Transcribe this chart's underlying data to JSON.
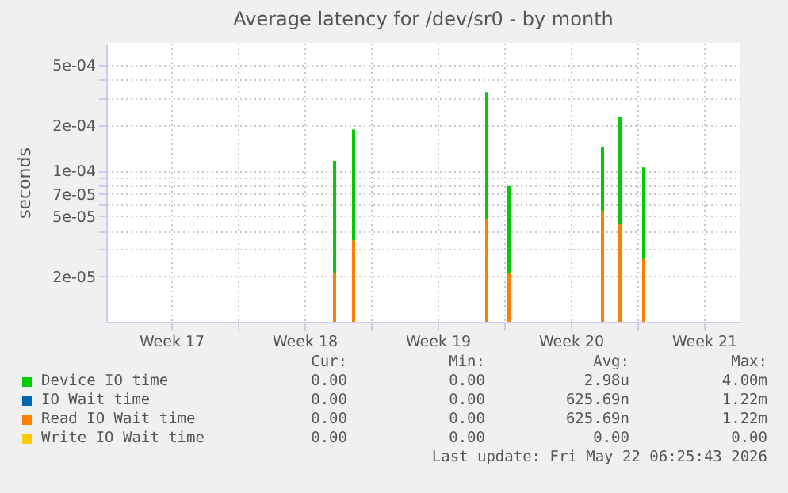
{
  "chart_data": {
    "type": "bar",
    "title": "Average latency for /dev/sr0 - by month",
    "ylabel": "seconds",
    "x": [
      "2026-05-02T02:00",
      "2026-05-03T02:00",
      "2026-05-10T02:00",
      "2026-05-11T06:00",
      "2026-05-16T04:00",
      "2026-05-17T02:00",
      "2026-05-18T08:00"
    ],
    "series": [
      {
        "name": "Device IO time",
        "color": "#00cc00",
        "values": [
          0.000116,
          0.000187,
          0.00033,
          7.9e-05,
          0.000143,
          0.000225,
          0.000105
        ]
      },
      {
        "name": "IO Wait time",
        "color": "#0066b3",
        "values": [
          null,
          null,
          null,
          null,
          null,
          null,
          null
        ]
      },
      {
        "name": "Read IO Wait time",
        "color": "#ff8000",
        "values": [
          2.1e-05,
          3.45e-05,
          4.8e-05,
          2.1e-05,
          5.4e-05,
          4.4e-05,
          2.6e-05
        ]
      },
      {
        "name": "Write IO Wait time",
        "color": "#ffcc00",
        "values": [
          null,
          null,
          null,
          null,
          null,
          null,
          null
        ]
      }
    ],
    "log": "y",
    "ylim": [
      1e-05,
      0.0007
    ],
    "yticks": [
      {
        "value": 2e-05,
        "label": "2e-05"
      },
      {
        "value": 3e-05,
        "label": null
      },
      {
        "value": 4e-05,
        "label": null
      },
      {
        "value": 5e-05,
        "label": "5e-05"
      },
      {
        "value": 6e-05,
        "label": null
      },
      {
        "value": 7e-05,
        "label": "7e-05"
      },
      {
        "value": 8e-05,
        "label": null
      },
      {
        "value": 9e-05,
        "label": null
      },
      {
        "value": 0.0001,
        "label": "1e-04"
      },
      {
        "value": 0.0002,
        "label": "2e-04"
      },
      {
        "value": 0.0003,
        "label": null
      },
      {
        "value": 0.0004,
        "label": null
      },
      {
        "value": 0.0005,
        "label": "5e-04"
      }
    ],
    "xlim": [
      "2026-04-20T02:00",
      "2026-05-23T10:00"
    ],
    "xticks": [
      {
        "value": "2026-04-23T12:00",
        "label": "Week 17"
      },
      {
        "value": "2026-04-27",
        "label": null
      },
      {
        "value": "2026-04-30T12:00",
        "label": "Week 18"
      },
      {
        "value": "2026-05-04",
        "label": null
      },
      {
        "value": "2026-05-07T12:00",
        "label": "Week 19"
      },
      {
        "value": "2026-05-11",
        "label": null
      },
      {
        "value": "2026-05-14T12:00",
        "label": "Week 20"
      },
      {
        "value": "2026-05-18",
        "label": null
      },
      {
        "value": "2026-05-21T12:00",
        "label": "Week 21"
      }
    ],
    "grid": true,
    "legend": "bottom",
    "annotations": [
      "Cur:",
      "Min:",
      "Avg:",
      "Max:",
      "0.00",
      "0.00",
      "2.98u",
      "4.00m",
      "0.00",
      "0.00",
      "625.69n",
      "1.22m",
      "0.00",
      "0.00",
      "625.69n",
      "1.22m",
      "0.00",
      "0.00",
      "0.00",
      "0.00",
      "Last update: Fri May 22 06:25:43 2026"
    ]
  }
}
